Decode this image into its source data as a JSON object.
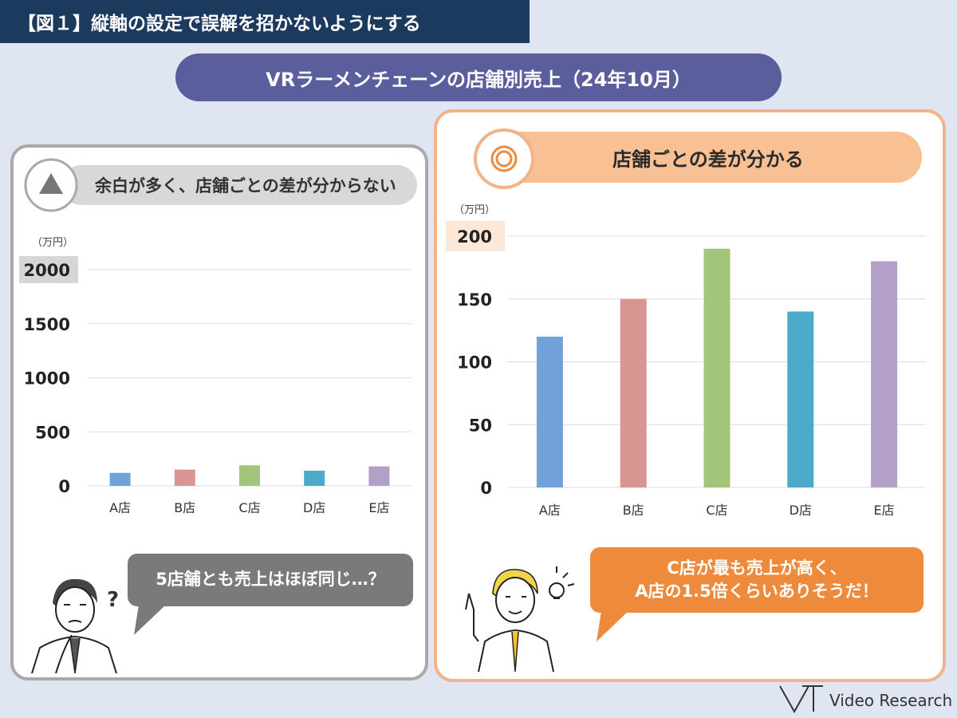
{
  "figure_label": "【図１】縦軸の設定で誤解を招かないようにする",
  "title": "VRラーメンチェーンの店舗別売上（24年10月）",
  "left_panel": {
    "header": "余白が多く、店舗ごとの差が分からない",
    "unit": "（万円）",
    "bubble": "5店舗とも売上はほぼ同じ…？"
  },
  "right_panel": {
    "header": "店舗ごとの差が分かる",
    "unit": "（万円）",
    "bubble_line1": "C店が最も売上が高く、",
    "bubble_line2": "A店の1.5倍くらいありそうだ！"
  },
  "logo": "Video Research",
  "colors": {
    "bars": [
      "#70a1d8",
      "#d89592",
      "#a3c47b",
      "#4aaac7",
      "#b3a0c9"
    ],
    "highlight_left": "#d6d6d6",
    "highlight_right": "#fde7d6"
  },
  "chart_data": [
    {
      "type": "bar",
      "title": "",
      "categories": [
        "A店",
        "B店",
        "C店",
        "D店",
        "E店"
      ],
      "values": [
        120,
        150,
        190,
        140,
        180
      ],
      "ylim": [
        0,
        2000
      ],
      "yticks": [
        0,
        500,
        1000,
        1500,
        2000
      ],
      "ylabel": "（万円）",
      "highlight_tick": 2000,
      "grid": true
    },
    {
      "type": "bar",
      "title": "",
      "categories": [
        "A店",
        "B店",
        "C店",
        "D店",
        "E店"
      ],
      "values": [
        120,
        150,
        190,
        140,
        180
      ],
      "ylim": [
        0,
        200
      ],
      "yticks": [
        0,
        50,
        100,
        150,
        200
      ],
      "ylabel": "（万円）",
      "highlight_tick": 200,
      "grid": true
    }
  ]
}
